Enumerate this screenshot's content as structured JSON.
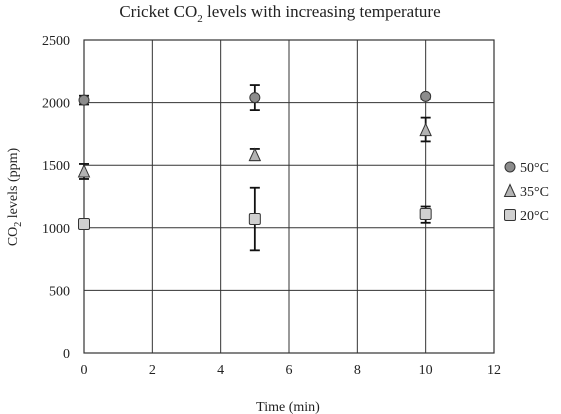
{
  "chart_data": {
    "type": "scatter",
    "title_main": "Cricket CO",
    "title_sub": "2",
    "title_tail": " levels with increasing temperature",
    "xlabel": "Time (min)",
    "ylabel_main": "CO",
    "ylabel_sub": "2",
    "ylabel_tail": " levels (ppm)",
    "xlim": [
      0,
      12
    ],
    "ylim": [
      0,
      2500
    ],
    "x_ticks": [
      {
        "value": 0,
        "label": "0"
      },
      {
        "value": 2,
        "label": "2"
      },
      {
        "value": 4,
        "label": "4"
      },
      {
        "value": 6,
        "label": "6"
      },
      {
        "value": 8,
        "label": "8"
      },
      {
        "value": 10,
        "label": "10"
      },
      {
        "value": 12,
        "label": "12"
      }
    ],
    "y_ticks": [
      {
        "value": 0,
        "label": "0"
      },
      {
        "value": 500,
        "label": "500"
      },
      {
        "value": 1000,
        "label": "1000"
      },
      {
        "value": 1500,
        "label": "1500"
      },
      {
        "value": 2000,
        "label": "2000"
      },
      {
        "value": 2500,
        "label": "2500"
      }
    ],
    "grid": true,
    "legend_position": "right",
    "series": [
      {
        "name": "50°C",
        "marker": "circle",
        "color": "#8c8c8c",
        "points": [
          {
            "x": 0,
            "y": 2020,
            "err_low": 1985,
            "err_high": 2055
          },
          {
            "x": 5,
            "y": 2040,
            "err_low": 1940,
            "err_high": 2140
          },
          {
            "x": 10,
            "y": 2050,
            "err_low": 2030,
            "err_high": 2065
          }
        ]
      },
      {
        "name": "35°C",
        "marker": "triangle",
        "color": "#b3b3b3",
        "points": [
          {
            "x": 0,
            "y": 1450,
            "err_low": 1390,
            "err_high": 1510
          },
          {
            "x": 5,
            "y": 1580,
            "err_low": 1540,
            "err_high": 1630
          },
          {
            "x": 10,
            "y": 1780,
            "err_low": 1690,
            "err_high": 1880
          }
        ]
      },
      {
        "name": "20°C",
        "marker": "square",
        "color": "#d0d0d0",
        "points": [
          {
            "x": 0,
            "y": 1030,
            "err_low": 1000,
            "err_high": 1060
          },
          {
            "x": 5,
            "y": 1070,
            "err_low": 820,
            "err_high": 1320
          },
          {
            "x": 10,
            "y": 1110,
            "err_low": 1040,
            "err_high": 1170
          }
        ]
      }
    ]
  }
}
